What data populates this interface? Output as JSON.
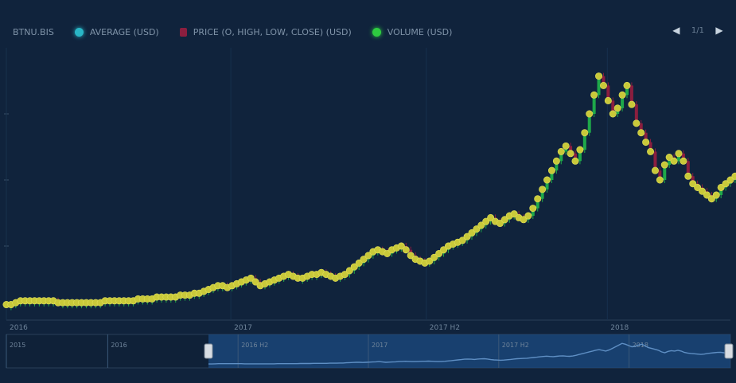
{
  "legend": {
    "title": "BTNU.BIS",
    "items": [
      {
        "label": "AVERAGE (USD)",
        "color": "#29b6c6"
      },
      {
        "label": "PRICE (O, HIGH, LOW, CLOSE) (USD)",
        "color": "#8b1e3f"
      },
      {
        "label": "VOLUME (USD)",
        "color": "#2ecc40"
      }
    ],
    "page_label": "1/1"
  },
  "icons": {
    "prev": "chevron-left-icon",
    "next": "chevron-right-icon"
  },
  "colors": {
    "background": "#10233c",
    "up": "#1fa84a",
    "down": "#8b1e3f",
    "marker": "#c9c93a",
    "navigator": "#1c4f88"
  },
  "chart_data": {
    "type": "line",
    "title": "",
    "xlabel": "",
    "ylabel": "",
    "x_ticks": [
      "2016",
      "2017",
      "2017 H2",
      "2018"
    ],
    "navigator_ticks": [
      "2015",
      "2016",
      "2016 H2",
      "2017",
      "2017 H2",
      "2018"
    ],
    "series": [
      {
        "name": "PRICE (O, HIGH, LOW, CLOSE) (USD)",
        "values": [
          4,
          4,
          5,
          6,
          6,
          6,
          6,
          6,
          6,
          6,
          6,
          5,
          5,
          5,
          5,
          5,
          5,
          5,
          5,
          5,
          5,
          6,
          6,
          6,
          6,
          6,
          6,
          6,
          7,
          7,
          7,
          7,
          8,
          8,
          8,
          8,
          8,
          9,
          9,
          9,
          10,
          10,
          11,
          12,
          13,
          14,
          14,
          13,
          14,
          15,
          16,
          17,
          18,
          16,
          14,
          15,
          16,
          17,
          18,
          19,
          20,
          19,
          18,
          18,
          19,
          20,
          20,
          21,
          20,
          19,
          18,
          19,
          20,
          22,
          24,
          26,
          28,
          30,
          32,
          33,
          32,
          31,
          33,
          34,
          35,
          33,
          30,
          28,
          27,
          26,
          27,
          29,
          31,
          33,
          35,
          36,
          37,
          38,
          40,
          42,
          44,
          46,
          48,
          50,
          48,
          47,
          49,
          51,
          52,
          50,
          49,
          51,
          55,
          60,
          65,
          70,
          75,
          80,
          85,
          88,
          84,
          80,
          86,
          95,
          105,
          115,
          125,
          120,
          112,
          105,
          108,
          115,
          120,
          110,
          100,
          95,
          90,
          85,
          75,
          70,
          78,
          82,
          80,
          84,
          80,
          72,
          68,
          66,
          64,
          62,
          60,
          62,
          66,
          68,
          70,
          72,
          73,
          70,
          68,
          64
        ]
      }
    ],
    "xlim": [
      0,
      154
    ],
    "ylim": [
      0,
      140
    ],
    "grid": false,
    "legend_position": "top"
  }
}
